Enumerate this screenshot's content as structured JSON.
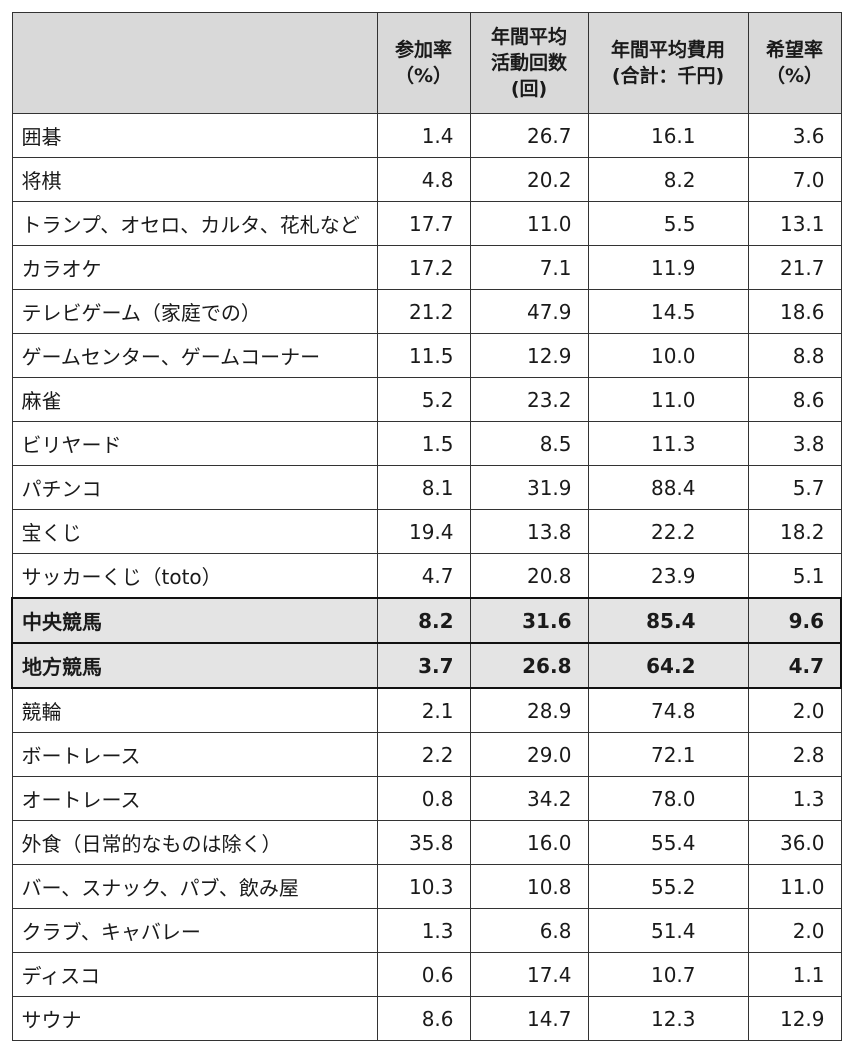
{
  "header": {
    "blank": "",
    "participation": [
      "参加率",
      "（%）"
    ],
    "frequency": [
      "年間平均",
      "活動回数",
      "(回)"
    ],
    "cost": [
      "年間平均費用",
      "(合計：千円)"
    ],
    "desire": [
      "希望率",
      "（%）"
    ]
  },
  "rows": [
    {
      "name": "囲碁",
      "participation": "1.4",
      "frequency": "26.7",
      "cost": "16.1",
      "desire": "3.6"
    },
    {
      "name": "将棋",
      "participation": "4.8",
      "frequency": "20.2",
      "cost": "8.2",
      "desire": "7.0"
    },
    {
      "name": "トランプ、オセロ、カルタ、花札など",
      "participation": "17.7",
      "frequency": "11.0",
      "cost": "5.5",
      "desire": "13.1"
    },
    {
      "name": "カラオケ",
      "participation": "17.2",
      "frequency": "7.1",
      "cost": "11.9",
      "desire": "21.7"
    },
    {
      "name": "テレビゲーム（家庭での）",
      "participation": "21.2",
      "frequency": "47.9",
      "cost": "14.5",
      "desire": "18.6"
    },
    {
      "name": "ゲームセンター、ゲームコーナー",
      "participation": "11.5",
      "frequency": "12.9",
      "cost": "10.0",
      "desire": "8.8"
    },
    {
      "name": "麻雀",
      "participation": "5.2",
      "frequency": "23.2",
      "cost": "11.0",
      "desire": "8.6"
    },
    {
      "name": "ビリヤード",
      "participation": "1.5",
      "frequency": "8.5",
      "cost": "11.3",
      "desire": "3.8"
    },
    {
      "name": "パチンコ",
      "participation": "8.1",
      "frequency": "31.9",
      "cost": "88.4",
      "desire": "5.7"
    },
    {
      "name": "宝くじ",
      "participation": "19.4",
      "frequency": "13.8",
      "cost": "22.2",
      "desire": "18.2"
    },
    {
      "name": "サッカーくじ（toto）",
      "participation": "4.7",
      "frequency": "20.8",
      "cost": "23.9",
      "desire": "5.1"
    },
    {
      "name": "中央競馬",
      "participation": "8.2",
      "frequency": "31.6",
      "cost": "85.4",
      "desire": "9.6",
      "highlight": true
    },
    {
      "name": "地方競馬",
      "participation": "3.7",
      "frequency": "26.8",
      "cost": "64.2",
      "desire": "4.7",
      "highlight": true
    },
    {
      "name": "競輪",
      "participation": "2.1",
      "frequency": "28.9",
      "cost": "74.8",
      "desire": "2.0"
    },
    {
      "name": "ボートレース",
      "participation": "2.2",
      "frequency": "29.0",
      "cost": "72.1",
      "desire": "2.8"
    },
    {
      "name": "オートレース",
      "participation": "0.8",
      "frequency": "34.2",
      "cost": "78.0",
      "desire": "1.3"
    },
    {
      "name": "外食（日常的なものは除く）",
      "participation": "35.8",
      "frequency": "16.0",
      "cost": "55.4",
      "desire": "36.0"
    },
    {
      "name": "バー、スナック、パブ、飲み屋",
      "participation": "10.3",
      "frequency": "10.8",
      "cost": "55.2",
      "desire": "11.0"
    },
    {
      "name": "クラブ、キャバレー",
      "participation": "1.3",
      "frequency": "6.8",
      "cost": "51.4",
      "desire": "2.0"
    },
    {
      "name": "ディスコ",
      "participation": "0.6",
      "frequency": "17.4",
      "cost": "10.7",
      "desire": "1.1"
    },
    {
      "name": "サウナ",
      "participation": "8.6",
      "frequency": "14.7",
      "cost": "12.3",
      "desire": "12.9"
    }
  ]
}
